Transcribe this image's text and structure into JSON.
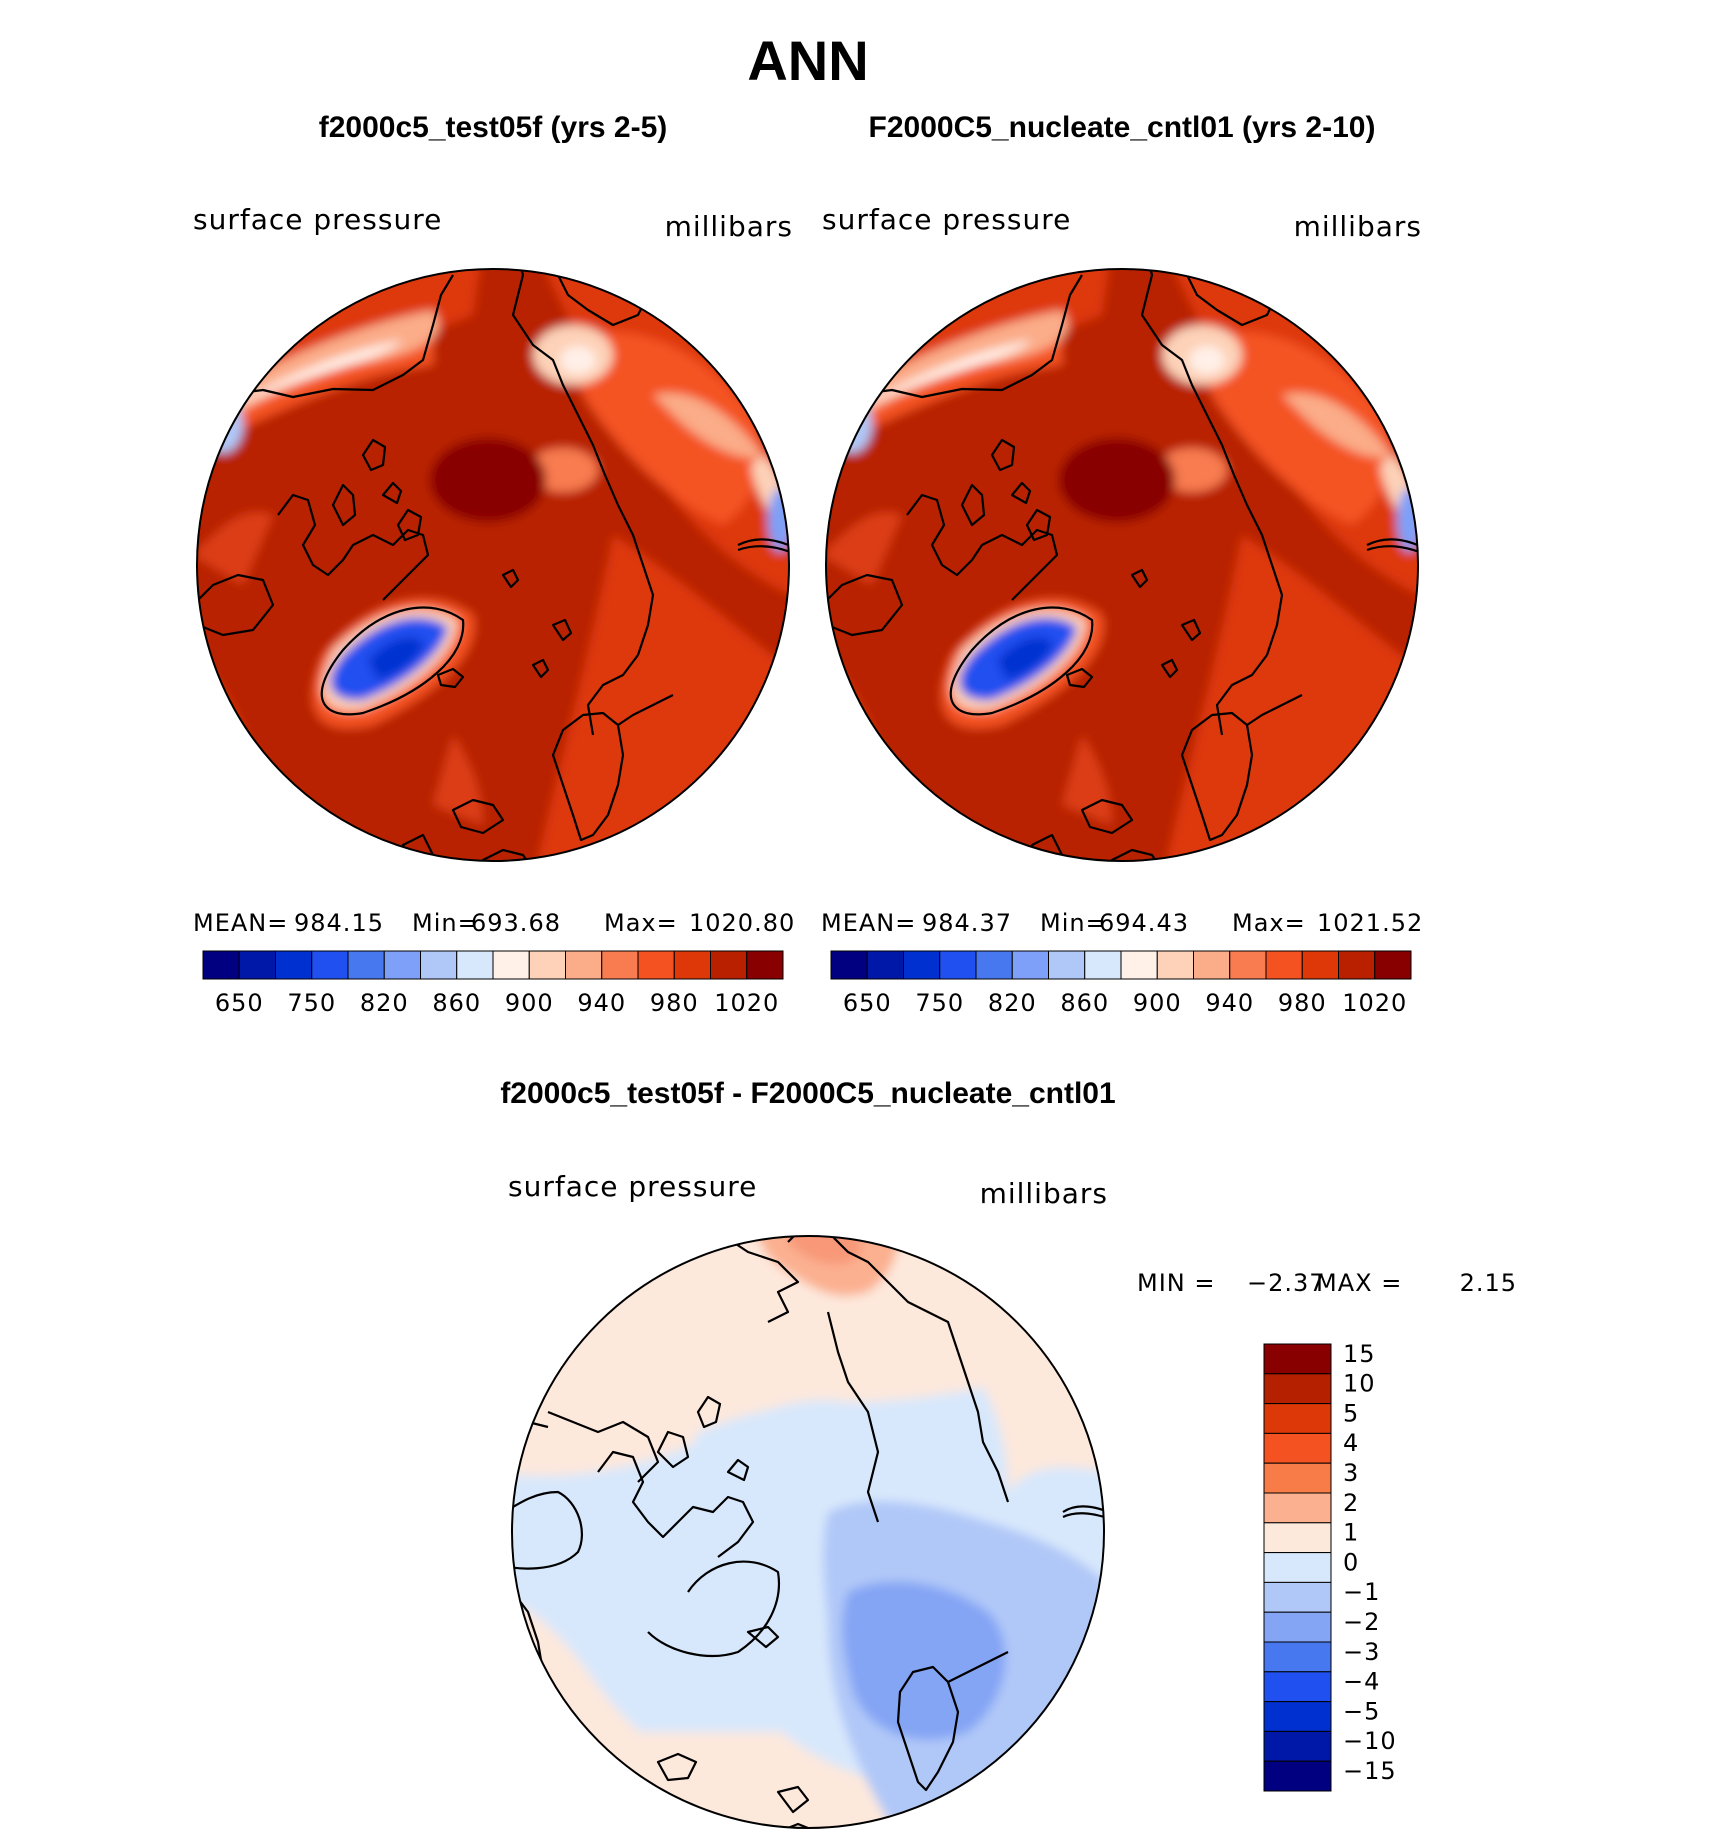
{
  "chart_data": {
    "type": "heatmap",
    "title": "ANN",
    "panels": [
      {
        "id": "test",
        "title": "f2000c5_test05f (yrs 2-5)",
        "variable": "surface pressure",
        "units": "millibars",
        "stats": {
          "mean_label": "MEAN=",
          "mean": "984.15",
          "min_label": "Min=",
          "min": "693.68",
          "max_label": "Max=",
          "max": "1020.80"
        },
        "colorbar": {
          "colors": [
            "#000080",
            "#0018a8",
            "#0030d0",
            "#2050f0",
            "#4878f0",
            "#7ea0f8",
            "#b0c8f8",
            "#d8e8fc",
            "#fff0e8",
            "#fdd2b8",
            "#fbac88",
            "#f87c50",
            "#f45220",
            "#de3808",
            "#b82000",
            "#880000"
          ],
          "ticks": [
            "650",
            "750",
            "820",
            "860",
            "900",
            "940",
            "980",
            "1020"
          ]
        }
      },
      {
        "id": "cntl",
        "title": "F2000C5_nucleate_cntl01 (yrs 2-10)",
        "variable": "surface pressure",
        "units": "millibars",
        "stats": {
          "mean_label": "MEAN=",
          "mean": "984.37",
          "min_label": "Min=",
          "min": "694.43",
          "max_label": "Max=",
          "max": "1021.52"
        },
        "colorbar": {
          "colors": [
            "#000080",
            "#0018a8",
            "#0030d0",
            "#2050f0",
            "#4878f0",
            "#7ea0f8",
            "#b0c8f8",
            "#d8e8fc",
            "#fff0e8",
            "#fdd2b8",
            "#fbac88",
            "#f87c50",
            "#f45220",
            "#de3808",
            "#b82000",
            "#880000"
          ],
          "ticks": [
            "650",
            "750",
            "820",
            "860",
            "900",
            "940",
            "980",
            "1020"
          ]
        }
      },
      {
        "id": "diff",
        "title": "f2000c5_test05f - F2000C5_nucleate_cntl01",
        "variable": "surface pressure",
        "units": "millibars",
        "stats": {
          "min_label": "MIN =",
          "min": "−2.37",
          "max_label": "MAX =",
          "max": "2.15"
        },
        "colorbar": {
          "colors_top_to_bottom": [
            "#880000",
            "#b42000",
            "#dc3808",
            "#f45220",
            "#f87c48",
            "#fbb090",
            "#fde8dc",
            "#d8e8fc",
            "#b0c8f8",
            "#84a4f4",
            "#4878f0",
            "#2050f0",
            "#0030d0",
            "#0018a8",
            "#000080"
          ],
          "labels_top_to_bottom": [
            "15",
            "10",
            "5",
            "4",
            "3",
            "2",
            "1",
            "0",
            "−1",
            "−2",
            "−3",
            "−4",
            "−5",
            "−10",
            "−15"
          ]
        }
      }
    ]
  }
}
